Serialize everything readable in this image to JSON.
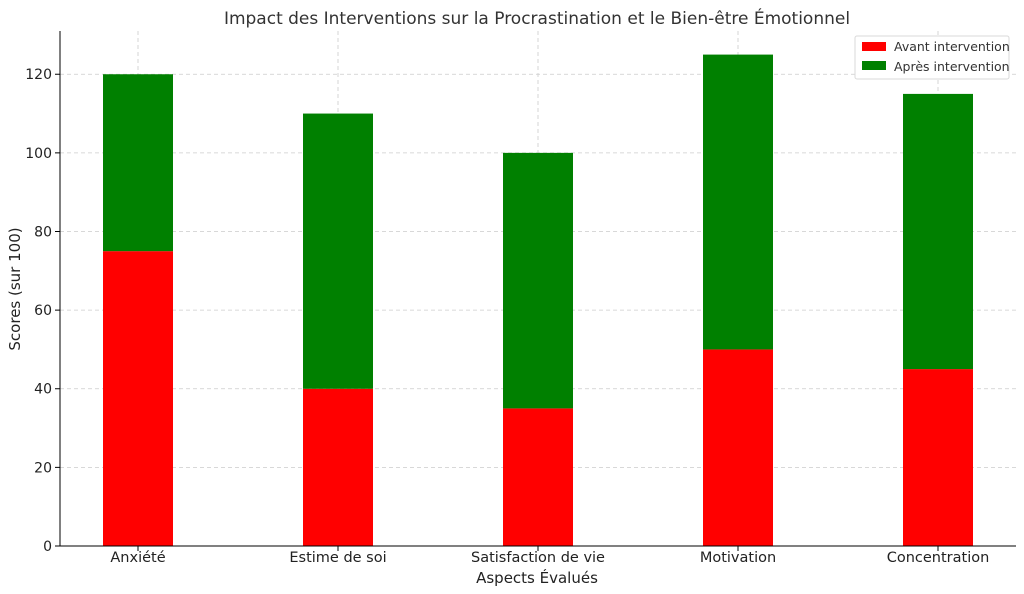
{
  "chart_data": {
    "type": "bar",
    "stacked": true,
    "title": "Impact des Interventions sur la Procrastination et le Bien-être Émotionnel",
    "xlabel": "Aspects Évalués",
    "ylabel": "Scores (sur 100)",
    "categories": [
      "Anxiété",
      "Estime de soi",
      "Satisfaction de vie",
      "Motivation",
      "Concentration"
    ],
    "series": [
      {
        "name": "Avant intervention",
        "color": "#ff0000",
        "values": [
          75,
          40,
          35,
          50,
          45
        ]
      },
      {
        "name": "Après intervention",
        "color": "#008000",
        "values": [
          45,
          70,
          65,
          75,
          70
        ]
      }
    ],
    "ylim": [
      0,
      131
    ],
    "yticks": [
      0,
      20,
      40,
      60,
      80,
      100,
      120
    ],
    "grid": true,
    "legend_position": "top-right"
  }
}
